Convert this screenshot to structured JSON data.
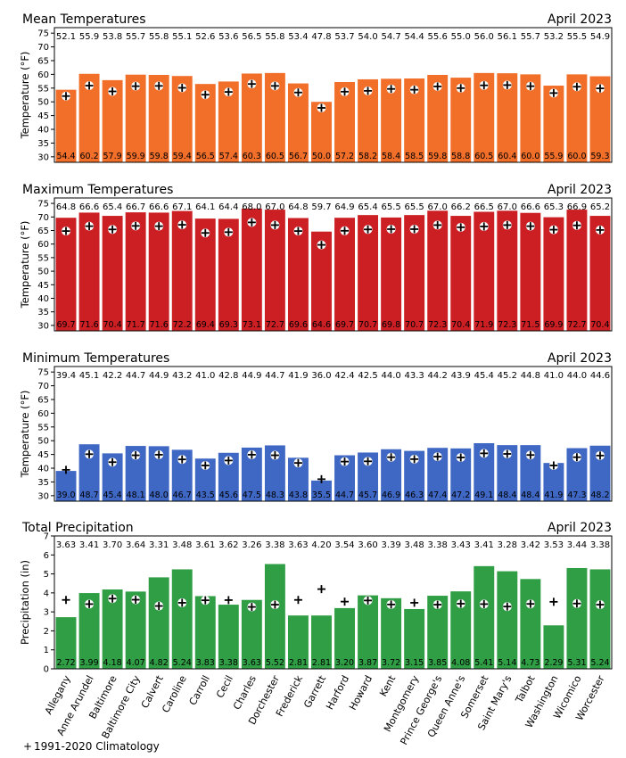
{
  "categories": [
    "Allegany",
    "Anne Arundel",
    "Baltimore",
    "Baltimore City",
    "Calvert",
    "Caroline",
    "Carroll",
    "Cecil",
    "Charles",
    "Dorchester",
    "Frederick",
    "Garrett",
    "Harford",
    "Howard",
    "Kent",
    "Montgomery",
    "Prince George's",
    "Queen Anne's",
    "Somerset",
    "Saint Mary's",
    "Talbot",
    "Washington",
    "Wicomico",
    "Worcester"
  ],
  "legend": {
    "symbol": "+",
    "label": "1991-2020 Climatology"
  },
  "chart_data": [
    {
      "type": "bar",
      "title": "Mean Temperatures",
      "date": "April 2023",
      "ylabel": "Temperature (°F)",
      "ylim": [
        28,
        77
      ],
      "yticks": [
        30,
        35,
        40,
        45,
        50,
        55,
        60,
        65,
        70,
        75
      ],
      "color": "#f26f2a",
      "decimals": 1,
      "values": [
        54.4,
        60.2,
        57.9,
        59.9,
        59.8,
        59.4,
        56.5,
        57.4,
        60.3,
        60.5,
        56.7,
        50.0,
        57.2,
        58.2,
        58.4,
        58.5,
        59.8,
        58.8,
        60.5,
        60.4,
        60.0,
        55.9,
        60.0,
        59.3
      ],
      "climatology": [
        52.1,
        55.9,
        53.8,
        55.7,
        55.8,
        55.1,
        52.6,
        53.6,
        56.5,
        55.8,
        53.4,
        47.8,
        53.7,
        54.0,
        54.7,
        54.4,
        55.6,
        55.0,
        56.0,
        56.1,
        55.7,
        53.2,
        55.5,
        54.9
      ]
    },
    {
      "type": "bar",
      "title": "Maximum Temperatures",
      "date": "April 2023",
      "ylabel": "Temperature (°F)",
      "ylim": [
        28,
        77
      ],
      "yticks": [
        30,
        35,
        40,
        45,
        50,
        55,
        60,
        65,
        70,
        75
      ],
      "color": "#cc1f24",
      "decimals": 1,
      "values": [
        69.7,
        71.6,
        70.4,
        71.7,
        71.6,
        72.2,
        69.4,
        69.3,
        73.1,
        72.7,
        69.6,
        64.6,
        69.7,
        70.7,
        69.8,
        70.7,
        72.3,
        70.4,
        71.9,
        72.3,
        71.5,
        69.9,
        72.7,
        70.4
      ],
      "climatology": [
        64.8,
        66.6,
        65.4,
        66.7,
        66.6,
        67.1,
        64.1,
        64.4,
        68.0,
        67.0,
        64.8,
        59.7,
        64.9,
        65.4,
        65.5,
        65.5,
        67.0,
        66.2,
        66.5,
        67.0,
        66.6,
        65.3,
        66.9,
        65.2
      ]
    },
    {
      "type": "bar",
      "title": "Minimum Temperatures",
      "date": "April 2023",
      "ylabel": "Temperature (°F)",
      "ylim": [
        28,
        77
      ],
      "yticks": [
        30,
        35,
        40,
        45,
        50,
        55,
        60,
        65,
        70,
        75
      ],
      "color": "#3f67c4",
      "decimals": 1,
      "values": [
        39.0,
        48.7,
        45.4,
        48.1,
        48.0,
        46.7,
        43.5,
        45.6,
        47.5,
        48.3,
        43.8,
        35.5,
        44.7,
        45.7,
        46.9,
        46.3,
        47.4,
        47.2,
        49.1,
        48.4,
        48.4,
        41.9,
        47.3,
        48.2
      ],
      "climatology": [
        39.4,
        45.1,
        42.2,
        44.7,
        44.9,
        43.2,
        41.0,
        42.8,
        44.9,
        44.7,
        41.9,
        36.0,
        42.4,
        42.5,
        44.0,
        43.3,
        44.2,
        43.9,
        45.4,
        45.2,
        44.8,
        41.0,
        44.0,
        44.6
      ]
    },
    {
      "type": "bar",
      "title": "Total Precipitation",
      "date": "April 2023",
      "ylabel": "Precipitation (in)",
      "ylim": [
        0,
        7
      ],
      "yticks": [
        0,
        1,
        2,
        3,
        4,
        5,
        6,
        7
      ],
      "color": "#2f9e44",
      "decimals": 2,
      "values": [
        2.72,
        3.99,
        4.18,
        4.07,
        4.82,
        5.24,
        3.83,
        3.38,
        3.63,
        5.52,
        2.81,
        2.81,
        3.2,
        3.87,
        3.72,
        3.15,
        3.85,
        4.08,
        5.41,
        5.14,
        4.73,
        2.29,
        5.31,
        5.24
      ],
      "climatology": [
        3.63,
        3.41,
        3.7,
        3.64,
        3.31,
        3.48,
        3.61,
        3.62,
        3.26,
        3.38,
        3.63,
        4.2,
        3.54,
        3.6,
        3.39,
        3.48,
        3.38,
        3.43,
        3.41,
        3.28,
        3.42,
        3.53,
        3.44,
        3.38
      ]
    }
  ]
}
